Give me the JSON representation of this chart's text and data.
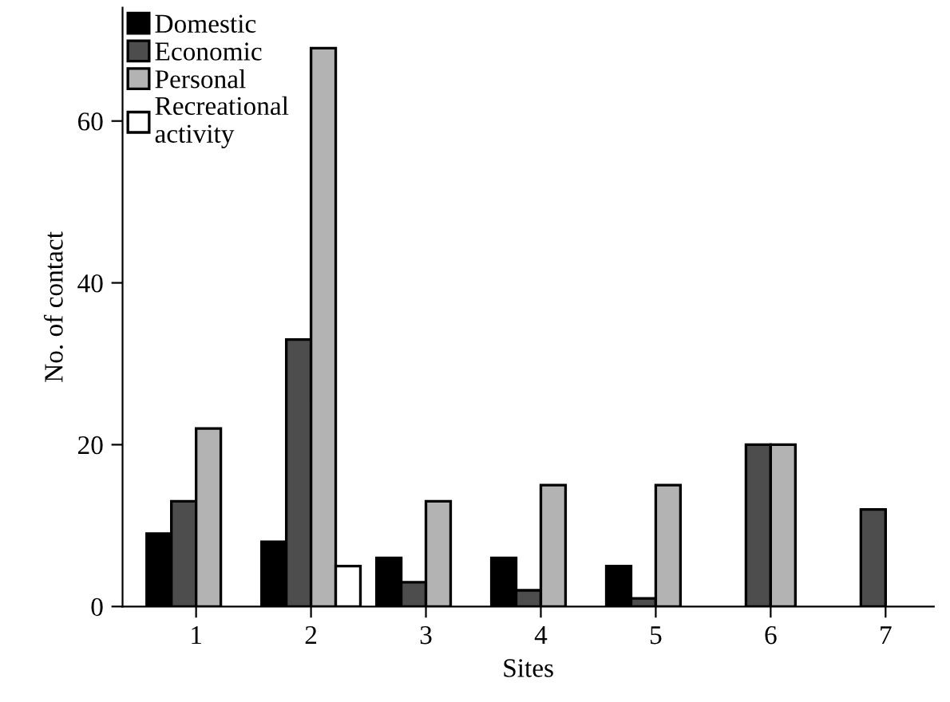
{
  "chart_data": {
    "type": "bar",
    "xlabel": "Sites",
    "ylabel": "No. of contact",
    "categories": [
      "1",
      "2",
      "3",
      "4",
      "5",
      "6",
      "7"
    ],
    "series": [
      {
        "name": "Domestic",
        "color": "#000000",
        "values": [
          9,
          8,
          6,
          6,
          5,
          null,
          null
        ]
      },
      {
        "name": "Economic",
        "color": "#4d4d4d",
        "values": [
          13,
          33,
          3,
          2,
          1,
          20,
          12
        ]
      },
      {
        "name": "Personal",
        "color": "#b3b3b3",
        "values": [
          22,
          69,
          13,
          15,
          15,
          20,
          null
        ]
      },
      {
        "name": "Recreational\nactivity",
        "color": "#ffffff",
        "values": [
          null,
          5,
          null,
          null,
          null,
          null,
          null
        ]
      }
    ],
    "ylim": [
      0,
      74
    ],
    "yticks": [
      0,
      20,
      40,
      60
    ],
    "grid": false,
    "legend": "top left"
  }
}
